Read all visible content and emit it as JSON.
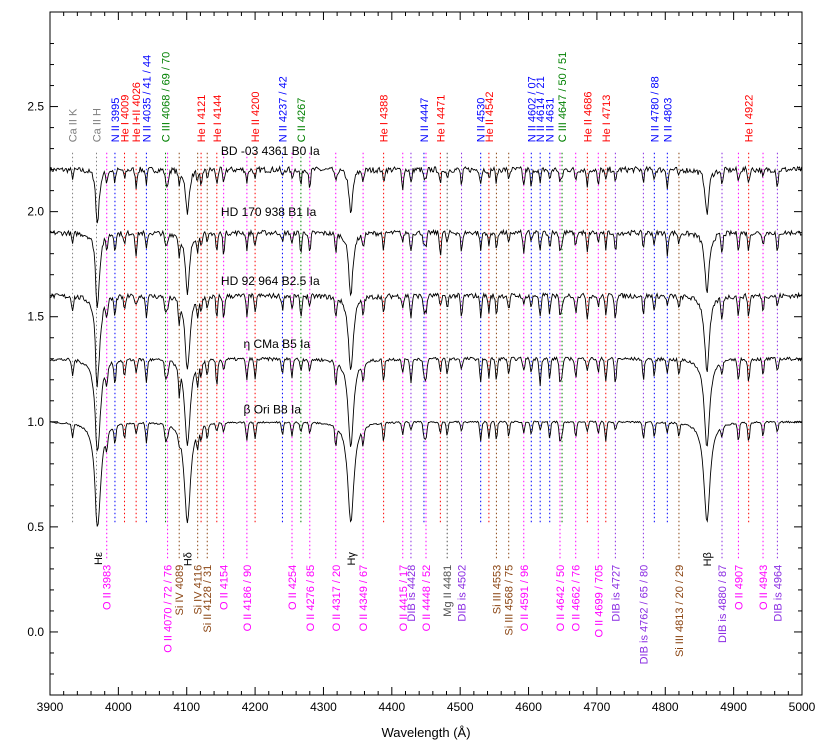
{
  "chart_data": {
    "type": "line",
    "title": "",
    "xlabel": "Wavelength (Å)",
    "ylabel": "",
    "xlim": [
      3900,
      5000
    ],
    "ylim": [
      -0.3,
      2.95
    ],
    "grid": false,
    "x_ticks": [
      3900,
      4000,
      4100,
      4200,
      4300,
      4400,
      4500,
      4600,
      4700,
      4800,
      4900,
      5000
    ],
    "y_ticks": [
      0.0,
      0.5,
      1.0,
      1.5,
      2.0,
      2.5
    ],
    "x_tick_labels": [
      "3900",
      "4000",
      "4100",
      "4200",
      "4300",
      "4400",
      "4500",
      "4600",
      "4700",
      "4800",
      "4900",
      "5000"
    ],
    "y_tick_labels": [
      "0.0",
      "0.5",
      "1.0",
      "1.5",
      "2.0",
      "2.5"
    ],
    "colors": {
      "N": "#0000ff",
      "He": "#ff0000",
      "C": "#008000",
      "Ca": "#808080",
      "O": "#ff00ff",
      "Si": "#8b4513",
      "DIB": "#8a2be2",
      "Mg": "#505050",
      "H": "#000000"
    },
    "series": [
      {
        "name": "BD -03 4361   B0 Ia",
        "offset": 2.2,
        "label_x": 4150,
        "label_y": 2.27,
        "depth": 0.09,
        "noise": 0.014,
        "hdepth": 0.22
      },
      {
        "name": "HD 170 938   B1 Ia",
        "offset": 1.9,
        "label_x": 4150,
        "label_y": 1.98,
        "depth": 0.11,
        "noise": 0.012,
        "hdepth": 0.3
      },
      {
        "name": "HD 92 964   B2.5 Ia",
        "offset": 1.6,
        "label_x": 4150,
        "label_y": 1.65,
        "depth": 0.12,
        "noise": 0.012,
        "hdepth": 0.36
      },
      {
        "name": "η CMa   B5 Ia",
        "offset": 1.3,
        "label_x": 4183,
        "label_y": 1.35,
        "depth": 0.13,
        "noise": 0.008,
        "hdepth": 0.42
      },
      {
        "name": "β Ori   B8 Ia",
        "offset": 1.0,
        "label_x": 4183,
        "label_y": 1.04,
        "depth": 0.1,
        "noise": 0.004,
        "hdepth": 0.48
      }
    ],
    "hydrogen_lines": [
      3970,
      4101,
      4340,
      4861
    ],
    "top_labels": [
      {
        "text": "Ca II K",
        "x": 3933,
        "group": "Ca"
      },
      {
        "text": "Ca II H",
        "x": 3968,
        "group": "Ca"
      },
      {
        "text": "N II 3995",
        "x": 3995,
        "group": "N"
      },
      {
        "text": "He I 4009",
        "x": 4009,
        "group": "He"
      },
      {
        "text": "He I+II 4026",
        "x": 4026,
        "group": "He"
      },
      {
        "text": "N II 4035 / 41 / 44",
        "x": 4041,
        "group": "N"
      },
      {
        "text": "C III 4068 / 69 / 70",
        "x": 4069,
        "group": "C"
      },
      {
        "text": "He I 4121",
        "x": 4121,
        "group": "He"
      },
      {
        "text": "He I 4144",
        "x": 4144,
        "group": "He"
      },
      {
        "text": "He II 4200",
        "x": 4200,
        "group": "He"
      },
      {
        "text": "N II 4237 / 42",
        "x": 4240,
        "group": "N"
      },
      {
        "text": "C II 4267",
        "x": 4267,
        "group": "C"
      },
      {
        "text": "He I 4388",
        "x": 4388,
        "group": "He"
      },
      {
        "text": "N II 4447",
        "x": 4447,
        "group": "N"
      },
      {
        "text": "He I 4471",
        "x": 4471,
        "group": "He"
      },
      {
        "text": "N II 4530",
        "x": 4530,
        "group": "N"
      },
      {
        "text": "He II 4542",
        "x": 4542,
        "group": "He"
      },
      {
        "text": "N II 4602 / 07",
        "x": 4604,
        "group": "N"
      },
      {
        "text": "N II 4614 / 21",
        "x": 4617,
        "group": "N"
      },
      {
        "text": "N II 4631",
        "x": 4631,
        "group": "N"
      },
      {
        "text": "C III 4647 / 50 / 51",
        "x": 4649,
        "group": "C"
      },
      {
        "text": "He II 4686",
        "x": 4686,
        "group": "He"
      },
      {
        "text": "He I 4713",
        "x": 4713,
        "group": "He"
      },
      {
        "text": "N II 4780 / 88",
        "x": 4784,
        "group": "N"
      },
      {
        "text": "N II 4803",
        "x": 4803,
        "group": "N"
      },
      {
        "text": "He I 4922",
        "x": 4922,
        "group": "He"
      }
    ],
    "bottom_labels": [
      {
        "text": "Hε",
        "x": 3970,
        "group": "H",
        "short": true
      },
      {
        "text": "O II 3983",
        "x": 3983,
        "group": "O"
      },
      {
        "text": "O II 4070 / 72 / 76",
        "x": 4072,
        "group": "O"
      },
      {
        "text": "Si IV 4089",
        "x": 4089,
        "group": "Si"
      },
      {
        "text": "Hδ",
        "x": 4101,
        "group": "H",
        "short": true
      },
      {
        "text": "Si IV 4116",
        "x": 4116,
        "group": "Si"
      },
      {
        "text": "Si II 4128 / 31",
        "x": 4130,
        "group": "Si"
      },
      {
        "text": "O II 4154",
        "x": 4154,
        "group": "O"
      },
      {
        "text": "O II 4186 / 90",
        "x": 4188,
        "group": "O"
      },
      {
        "text": "O II 4254",
        "x": 4254,
        "group": "O"
      },
      {
        "text": "O II 4276 / 85",
        "x": 4280,
        "group": "O"
      },
      {
        "text": "O II 4317 / 20",
        "x": 4318,
        "group": "O"
      },
      {
        "text": "Hγ",
        "x": 4340,
        "group": "H",
        "short": true
      },
      {
        "text": "O II 4349 / 67",
        "x": 4358,
        "group": "O"
      },
      {
        "text": "O II 4415 / 17",
        "x": 4416,
        "group": "O"
      },
      {
        "text": "DIB is 4428",
        "x": 4428,
        "group": "DIB"
      },
      {
        "text": "O II 4448 / 52",
        "x": 4450,
        "group": "O"
      },
      {
        "text": "Mg II 4481",
        "x": 4481,
        "group": "Mg"
      },
      {
        "text": "DIB is 4502",
        "x": 4502,
        "group": "DIB"
      },
      {
        "text": "Si III 4553",
        "x": 4553,
        "group": "Si"
      },
      {
        "text": "Si III 4568 / 75",
        "x": 4571,
        "group": "Si"
      },
      {
        "text": "O II 4591 / 96",
        "x": 4593,
        "group": "O"
      },
      {
        "text": "O II 4642 / 50",
        "x": 4646,
        "group": "O"
      },
      {
        "text": "O II 4662 / 76",
        "x": 4669,
        "group": "O"
      },
      {
        "text": "O II 4699 / 705",
        "x": 4702,
        "group": "O"
      },
      {
        "text": "DIB is 4727",
        "x": 4727,
        "group": "DIB"
      },
      {
        "text": "DIB is 4762 / 65 / 80",
        "x": 4768,
        "group": "DIB"
      },
      {
        "text": "Si III 4813 / 20 / 29",
        "x": 4820,
        "group": "Si"
      },
      {
        "text": "Hβ",
        "x": 4861,
        "group": "H",
        "short": true
      },
      {
        "text": "DIB is 4880 / 87",
        "x": 4883,
        "group": "DIB"
      },
      {
        "text": "O II 4907",
        "x": 4907,
        "group": "O"
      },
      {
        "text": "O II 4943",
        "x": 4943,
        "group": "O"
      },
      {
        "text": "DIB is 4964",
        "x": 4964,
        "group": "DIB"
      }
    ]
  }
}
